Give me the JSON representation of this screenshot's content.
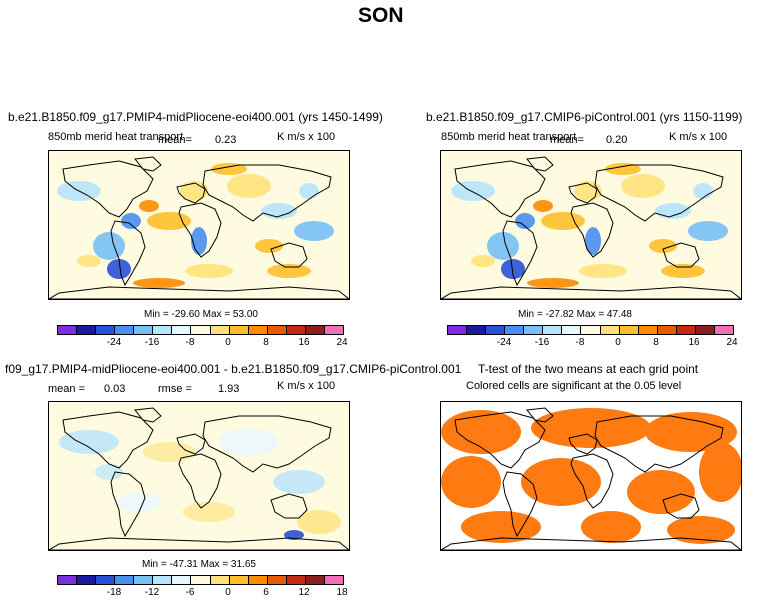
{
  "figure": {
    "title": "SON"
  },
  "panels": [
    {
      "id": "p1",
      "title": "b.e21.B1850.f09_g17.PMIP4-midPliocene-eoi400.001 (yrs 1450-1499)",
      "left_label": "850mb merid heat transport",
      "mean_label": "mean=",
      "mean_value": "0.23",
      "units": "K m/s x 100",
      "minmax": "Min = -29.60 Max =  53.00",
      "colorbar_ticks": [
        "-24",
        "-16",
        "-8",
        "0",
        "8",
        "16",
        "24"
      ]
    },
    {
      "id": "p2",
      "title": "b.e21.B1850.f09_g17.CMIP6-piControl.001 (yrs 1150-1199)",
      "left_label": "850mb merid heat transport",
      "mean_label": "mean=",
      "mean_value": "0.20",
      "units": "K m/s x 100",
      "minmax": "Min = -27.82 Max =  47.48",
      "colorbar_ticks": [
        "-24",
        "-16",
        "-8",
        "0",
        "8",
        "16",
        "24"
      ]
    },
    {
      "id": "p3",
      "title": "f09_g17.PMIP4-midPliocene-eoi400.001 - b.e21.B1850.f09_g17.CMIP6-piControl.001",
      "mean_label": "mean =",
      "mean_value": "0.03",
      "rmse_label": "rmse =",
      "rmse_value": "1.93",
      "units": "K m/s x 100",
      "minmax": "Min = -47.31 Max =  31.65",
      "colorbar_ticks": [
        "-18",
        "-12",
        "-6",
        "0",
        "6",
        "12",
        "18"
      ]
    },
    {
      "id": "p4",
      "title": "T-test of the two means at each grid point",
      "subtitle": "Colored cells are significant at the 0.05 level"
    }
  ],
  "colors": {
    "colorbar": [
      "#7b2fe0",
      "#1a1aa0",
      "#2b4fd6",
      "#4a8ef0",
      "#77bff5",
      "#b6e4fb",
      "#e7f7ff",
      "#fffbe0",
      "#ffe27a",
      "#ffbf2a",
      "#ff8a00",
      "#e85c00",
      "#c42a10",
      "#8e1d1d",
      "#f06fb8"
    ],
    "significance": "#ff7a10",
    "land_outline": "#000000"
  }
}
